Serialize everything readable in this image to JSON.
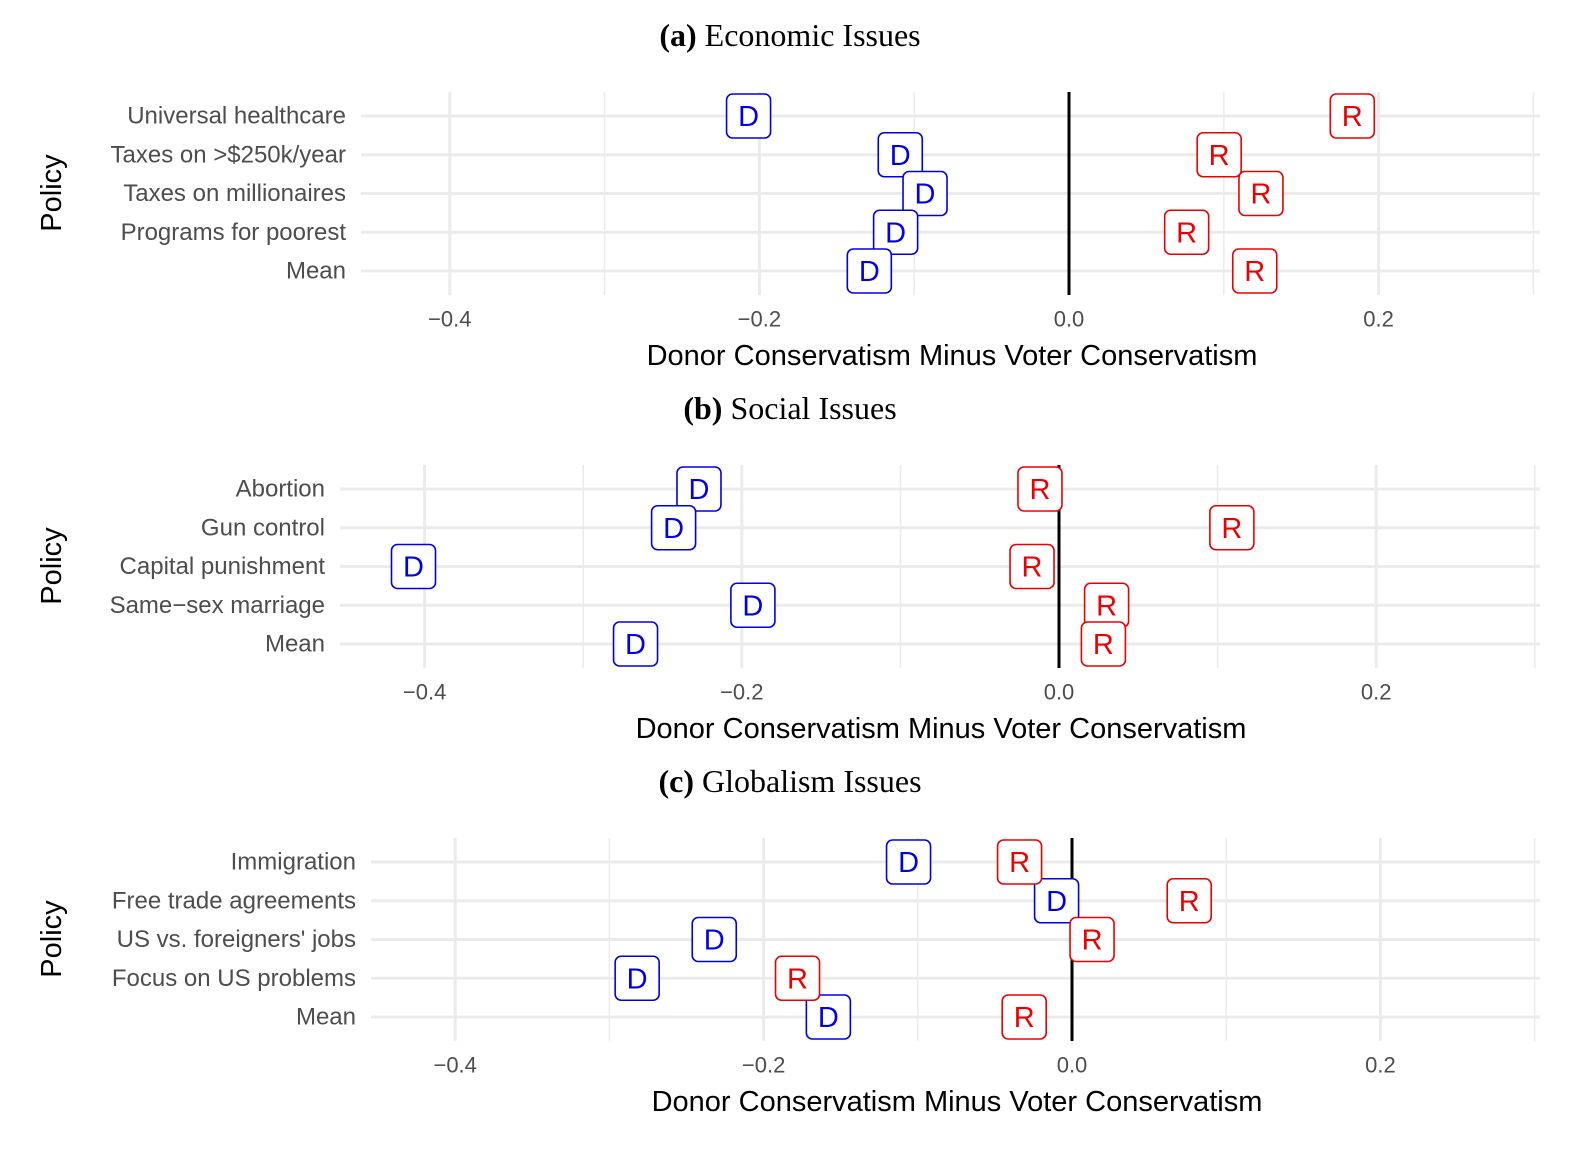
{
  "colors": {
    "D": "#0000ee",
    "R": "#ee0000",
    "grid": "#ebebeb",
    "zero_line": "#000000"
  },
  "chart_data": [
    {
      "type": "scatter",
      "title_prefix": "(a)",
      "title": "Economic Issues",
      "xlabel": "Donor Conservatism Minus Voter Conservatism",
      "ylabel": "Policy",
      "xlim": [
        -0.45,
        0.3
      ],
      "xticks": [
        -0.4,
        -0.2,
        0.0,
        0.2
      ],
      "xtick_labels": [
        "−0.4",
        "−0.2",
        "0.0",
        "0.2"
      ],
      "categories": [
        "Universal healthcare",
        "Taxes on >$250k/year",
        "Taxes on millionaires",
        "Programs for poorest",
        "Mean"
      ],
      "series": [
        {
          "name": "D",
          "values": [
            -0.207,
            -0.109,
            -0.093,
            -0.112,
            -0.129
          ]
        },
        {
          "name": "R",
          "values": [
            0.183,
            0.097,
            0.124,
            0.076,
            0.12
          ]
        }
      ]
    },
    {
      "type": "scatter",
      "title_prefix": "(b)",
      "title": "Social Issues",
      "xlabel": "Donor Conservatism Minus Voter Conservatism",
      "ylabel": "Policy",
      "xlim": [
        -0.45,
        0.3
      ],
      "xticks": [
        -0.4,
        -0.2,
        0.0,
        0.2
      ],
      "xtick_labels": [
        "−0.4",
        "−0.2",
        "0.0",
        "0.2"
      ],
      "categories": [
        "Abortion",
        "Gun control",
        "Capital punishment",
        "Same−sex marriage",
        "Mean"
      ],
      "series": [
        {
          "name": "D",
          "values": [
            -0.227,
            -0.243,
            -0.407,
            -0.193,
            -0.267
          ]
        },
        {
          "name": "R",
          "values": [
            -0.012,
            0.109,
            -0.017,
            0.03,
            0.028
          ]
        }
      ]
    },
    {
      "type": "scatter",
      "title_prefix": "(c)",
      "title": "Globalism Issues",
      "xlabel": "Donor Conservatism Minus Voter Conservatism",
      "ylabel": "Policy",
      "xlim": [
        -0.45,
        0.3
      ],
      "xticks": [
        -0.4,
        -0.2,
        0.0,
        0.2
      ],
      "xtick_labels": [
        "−0.4",
        "−0.2",
        "0.0",
        "0.2"
      ],
      "categories": [
        "Immigration",
        "Free trade agreements",
        "US vs. foreigners' jobs",
        "Focus on US problems",
        "Mean"
      ],
      "series": [
        {
          "name": "D",
          "values": [
            -0.106,
            -0.01,
            -0.232,
            -0.282,
            -0.158
          ]
        },
        {
          "name": "R",
          "values": [
            -0.034,
            0.076,
            0.013,
            -0.178,
            -0.031
          ]
        }
      ]
    }
  ]
}
